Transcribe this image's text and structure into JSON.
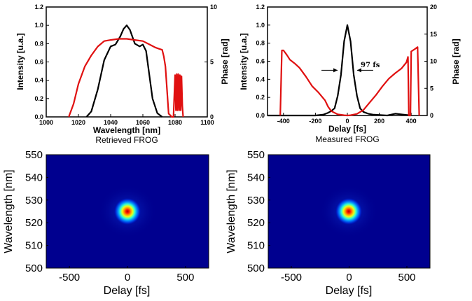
{
  "chart_data": [
    {
      "type": "line",
      "caption": "Retrieved FROG",
      "xlabel": "Wavelength [nm]",
      "ylabel": "Intensity [u.a.]",
      "y2label": "Phase [rad]",
      "xlim": [
        1000,
        1100
      ],
      "ylim": [
        0,
        1.2
      ],
      "y2lim": [
        0,
        10
      ],
      "xticks": [
        "1000",
        "1020",
        "1040",
        "1060",
        "1080",
        "1100"
      ],
      "yticks": [
        "0.0",
        "0.2",
        "0.4",
        "0.6",
        "0.8",
        "1.0",
        "1.2"
      ],
      "y2ticks": [
        "0",
        "5",
        "10"
      ],
      "series": [
        {
          "color": "#000000",
          "axis": "left",
          "x": [
            1025,
            1028,
            1032,
            1036,
            1040,
            1043,
            1046,
            1048,
            1050,
            1052,
            1055,
            1058,
            1060,
            1062,
            1064,
            1066,
            1069,
            1072
          ],
          "y": [
            0.0,
            0.06,
            0.3,
            0.62,
            0.77,
            0.79,
            0.88,
            0.96,
            1.0,
            0.95,
            0.8,
            0.77,
            0.79,
            0.72,
            0.46,
            0.2,
            0.04,
            0.0
          ]
        },
        {
          "color": "#e01010",
          "axis": "right",
          "x": [
            1014,
            1017,
            1020,
            1024,
            1028,
            1032,
            1036,
            1040,
            1045,
            1050,
            1055,
            1060,
            1064,
            1068,
            1070,
            1072,
            1073,
            1074,
            1076,
            1078,
            1079,
            1080,
            1080.5,
            1081,
            1081.5,
            1082,
            1082.5,
            1083,
            1083.5,
            1084,
            1084.5,
            1085
          ],
          "y": [
            0.0,
            1.2,
            3.0,
            4.6,
            5.6,
            6.4,
            6.9,
            7.0,
            7.1,
            7.1,
            7.0,
            6.9,
            6.6,
            6.3,
            6.2,
            6.1,
            5.5,
            4.6,
            0.3,
            0.0,
            0.0,
            3.8,
            0.6,
            3.9,
            0.6,
            3.9,
            0.6,
            3.8,
            0.6,
            3.7,
            1.0,
            0.0
          ]
        }
      ]
    },
    {
      "type": "line",
      "caption": "Measured FROG",
      "xlabel": "Delay [fs]",
      "ylabel": "Intensity [u.a.]",
      "y2label": "Phase [rad]",
      "xlim": [
        -500,
        500
      ],
      "ylim": [
        0,
        1.2
      ],
      "y2lim": [
        0,
        20
      ],
      "xticks": [
        "-400",
        "-200",
        "0",
        "200",
        "400"
      ],
      "yticks": [
        "0.0",
        "0.2",
        "0.4",
        "0.6",
        "0.8",
        "1.0",
        "1.2"
      ],
      "y2ticks": [
        "0",
        "5",
        "10",
        "15",
        "20"
      ],
      "annotation": "97 fs",
      "fwhm_marker": [
        -48,
        48,
        0.5
      ],
      "series": [
        {
          "color": "#000000",
          "axis": "left",
          "x": [
            -500,
            -200,
            -150,
            -120,
            -100,
            -80,
            -60,
            -40,
            -20,
            0,
            20,
            40,
            60,
            80,
            100,
            130,
            160,
            250,
            300,
            350,
            400
          ],
          "y": [
            0.0,
            0.0,
            0.01,
            0.03,
            0.05,
            0.08,
            0.22,
            0.45,
            0.82,
            1.0,
            0.82,
            0.45,
            0.22,
            0.08,
            0.04,
            0.02,
            0.01,
            0.0,
            0.02,
            0.01,
            0.0
          ],
          "yunit": "intensity"
        },
        {
          "color": "#e01010",
          "axis": "right",
          "x": [
            -420,
            -410,
            -400,
            -380,
            -360,
            -330,
            -300,
            -260,
            -220,
            -180,
            -140,
            -120,
            -100,
            -60,
            -20,
            0,
            20,
            60,
            100,
            140,
            180,
            220,
            260,
            300,
            340,
            370,
            380,
            385,
            395,
            400,
            420,
            440,
            450
          ],
          "y": [
            0.0,
            12.0,
            12.0,
            11.2,
            10.3,
            9.6,
            8.8,
            7.2,
            5.4,
            4.2,
            2.8,
            1.6,
            0.8,
            0.2,
            0.05,
            0.0,
            0.05,
            0.3,
            1.0,
            2.4,
            3.8,
            5.4,
            6.8,
            7.8,
            8.7,
            9.8,
            10.8,
            0.0,
            0.0,
            11.8,
            12.2,
            12.6,
            0.0
          ]
        }
      ]
    },
    {
      "type": "heatmap",
      "xlabel": "Delay [fs]",
      "ylabel": "Wavelength [nm]",
      "xlim": [
        -700,
        700
      ],
      "ylim": [
        500,
        550
      ],
      "xticks": [
        "-500",
        "0",
        "500"
      ],
      "yticks": [
        "500",
        "510",
        "520",
        "530",
        "540",
        "550"
      ],
      "colormap": "jet",
      "peak": {
        "delay": 0,
        "wavelength": 525
      }
    },
    {
      "type": "heatmap",
      "xlabel": "Delay [fs]",
      "ylabel": "Wavelength [nm]",
      "xlim": [
        -700,
        700
      ],
      "ylim": [
        500,
        550
      ],
      "xticks": [
        "-500",
        "0",
        "500"
      ],
      "yticks": [
        "500",
        "510",
        "520",
        "530",
        "540",
        "550"
      ],
      "colormap": "jet",
      "peak": {
        "delay": 0,
        "wavelength": 525
      }
    }
  ]
}
